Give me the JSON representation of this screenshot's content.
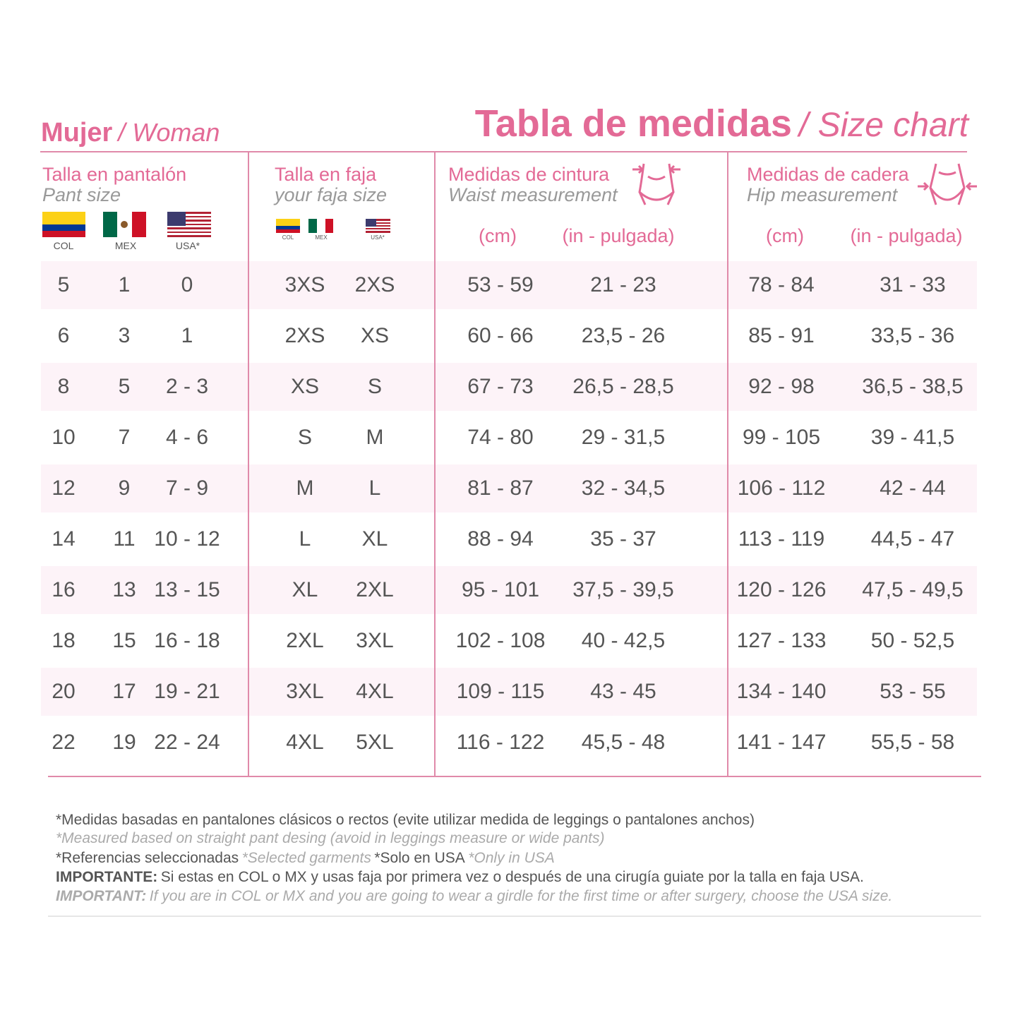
{
  "header": {
    "left_title": "Mujer",
    "left_title_en": "/ Woman",
    "title": "Tabla de medidas",
    "title_en": "/ Size chart"
  },
  "columns": {
    "pant": {
      "title": "Talla en pantalón",
      "subtitle": "Pant size",
      "flags": [
        "COL",
        "MEX",
        "USA*"
      ]
    },
    "faja": {
      "title": "Talla en faja",
      "subtitle": "your faja size",
      "flags": [
        "COL",
        "MEX",
        "USA*"
      ]
    },
    "waist": {
      "title": "Medidas de cintura",
      "subtitle": "Waist measurement",
      "units": [
        "(cm)",
        "(in - pulgada)"
      ]
    },
    "hip": {
      "title": "Medidas de cadera",
      "subtitle": "Hip measurement",
      "units": [
        "(cm)",
        "(in - pulgada)"
      ]
    }
  },
  "table": {
    "rows": [
      [
        "5",
        "1",
        "0",
        "3XS",
        "2XS",
        "53 - 59",
        "21 - 23",
        "78 - 84",
        "31 - 33"
      ],
      [
        "6",
        "3",
        "1",
        "2XS",
        "XS",
        "60 - 66",
        "23,5 - 26",
        "85 - 91",
        "33,5 - 36"
      ],
      [
        "8",
        "5",
        "2 - 3",
        "XS",
        "S",
        "67 - 73",
        "26,5 - 28,5",
        "92 - 98",
        "36,5 - 38,5"
      ],
      [
        "10",
        "7",
        "4 - 6",
        "S",
        "M",
        "74 - 80",
        "29 - 31,5",
        "99 - 105",
        "39 - 41,5"
      ],
      [
        "12",
        "9",
        "7 - 9",
        "M",
        "L",
        "81 - 87",
        "32 - 34,5",
        "106 - 112",
        "42 - 44"
      ],
      [
        "14",
        "11",
        "10 - 12",
        "L",
        "XL",
        "88 - 94",
        "35 - 37",
        "113 - 119",
        "44,5 - 47"
      ],
      [
        "16",
        "13",
        "13 - 15",
        "XL",
        "2XL",
        "95 - 101",
        "37,5 - 39,5",
        "120 - 126",
        "47,5 - 49,5"
      ],
      [
        "18",
        "15",
        "16 - 18",
        "2XL",
        "3XL",
        "102 - 108",
        "40 - 42,5",
        "127 - 133",
        "50 - 52,5"
      ],
      [
        "20",
        "17",
        "19 - 21",
        "3XL",
        "4XL",
        "109 - 115",
        "43 - 45",
        "134 - 140",
        "53 - 55"
      ],
      [
        "22",
        "19",
        "22 - 24",
        "4XL",
        "5XL",
        "116 - 122",
        "45,5 - 48",
        "141 - 147",
        "55,5 - 58"
      ]
    ]
  },
  "notes": {
    "line1": "*Medidas basadas en pantalones clásicos o rectos (evite utilizar medida de leggings o pantalones anchos)",
    "line2": "*Measured based on straight pant desing (avoid in leggings measure or wide pants)",
    "line3": [
      "*Referencias seleccionadas",
      "*Selected garments",
      "*Solo en USA",
      "*Only in USA"
    ],
    "line4": {
      "label": "IMPORTANTE:",
      "text": "Si estas en COL o MX y usas faja por primera vez o después de una cirugía guiate por la talla en faja USA."
    },
    "line5": {
      "label": "IMPORTANT:",
      "text": "If you are in COL or MX and you are going to wear a girdle for the first time or after surgery, choose the USA size."
    }
  }
}
